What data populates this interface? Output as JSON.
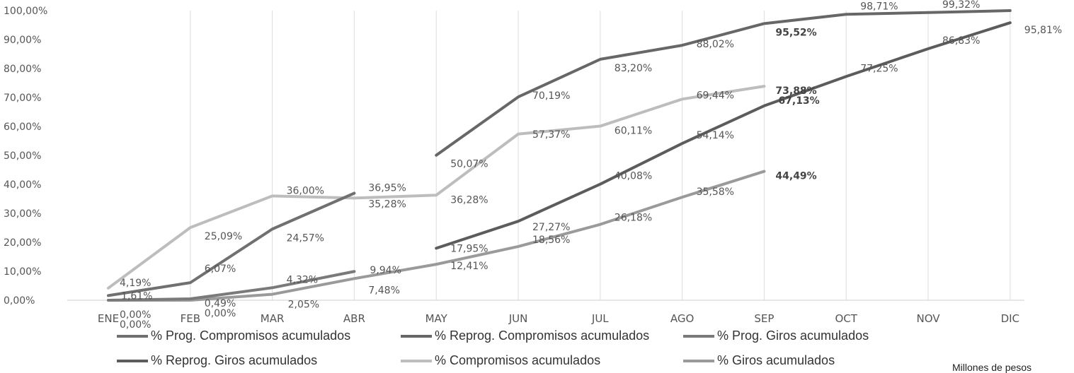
{
  "chart_data": {
    "type": "line",
    "title": "",
    "xlabel": "",
    "ylabel": "",
    "categories": [
      "ENE",
      "FEB",
      "MAR",
      "ABR",
      "MAY",
      "JUN",
      "JUL",
      "AGO",
      "SEP",
      "OCT",
      "NOV",
      "DIC"
    ],
    "ylim": [
      0,
      100
    ],
    "yticks": [
      "0,00%",
      "10,00%",
      "20,00%",
      "30,00%",
      "40,00%",
      "50,00%",
      "60,00%",
      "70,00%",
      "80,00%",
      "90,00%",
      "100,00%"
    ],
    "grid": "vertical",
    "legend_position": "bottom",
    "series": [
      {
        "name": "% Prog. Compromisos acumulados",
        "color": "#707070",
        "values": [
          1.61,
          6.07,
          24.57,
          36.95,
          null,
          null,
          null,
          null,
          null,
          null,
          null,
          null
        ],
        "labels": [
          "1,61%",
          "6,07%",
          "24,57%",
          "36,95%",
          null,
          null,
          null,
          null,
          null,
          null,
          null,
          null
        ]
      },
      {
        "name": "% Reprog. Compromisos acumulados",
        "color": "#676767",
        "values": [
          null,
          null,
          null,
          null,
          50.07,
          70.19,
          83.2,
          88.02,
          95.52,
          98.71,
          99.32,
          100
        ],
        "labels": [
          null,
          null,
          null,
          null,
          "50,07%",
          "70,19%",
          "83,20%",
          "88,02%",
          "95,52%",
          "98,71%",
          "99,32%",
          null
        ]
      },
      {
        "name": "% Prog. Giros acumulados",
        "color": "#7a7a7a",
        "values": [
          0,
          0.49,
          4.32,
          9.94,
          null,
          null,
          null,
          null,
          null,
          null,
          null,
          null
        ],
        "labels": [
          "0,00%",
          "0,49%",
          "4,32%",
          "9,94%",
          null,
          null,
          null,
          null,
          null,
          null,
          null,
          null
        ]
      },
      {
        "name": "% Reprog. Giros acumulados",
        "color": "#5c5c5c",
        "values": [
          null,
          null,
          null,
          null,
          17.95,
          27.27,
          40.08,
          54.14,
          67.13,
          77.25,
          86.83,
          95.81
        ],
        "labels": [
          null,
          null,
          null,
          null,
          "17,95%",
          "27,27%",
          "40,08%",
          "54,14%",
          "67,13%",
          "77,25%",
          "86,83%",
          "95,81%"
        ]
      },
      {
        "name": "% Compromisos acumulados",
        "color": "#bdbdbd",
        "values": [
          4.19,
          25.09,
          36.0,
          35.28,
          36.28,
          57.37,
          60.11,
          69.44,
          73.88,
          null,
          null,
          null
        ],
        "labels": [
          "4,19%",
          "25,09%",
          "36,00%",
          "35,28%",
          "36,28%",
          "57,37%",
          "60,11%",
          "69,44%",
          "73,88%",
          null,
          null,
          null
        ]
      },
      {
        "name": "% Giros acumulados",
        "color": "#9a9a9a",
        "values": [
          0,
          0,
          2.05,
          7.48,
          12.41,
          18.56,
          26.18,
          35.58,
          44.49,
          null,
          null,
          null
        ],
        "labels": [
          "0,00%",
          "0,00%",
          "2,05%",
          "7,48%",
          "12,41%",
          "18,56%",
          "26,18%",
          "35,58%",
          "44,49%",
          null,
          null,
          null
        ]
      }
    ],
    "bold_labels": [
      "95,52%",
      "73,88%",
      "67,13%",
      "44,49%"
    ]
  },
  "note": "Millones de pesos"
}
